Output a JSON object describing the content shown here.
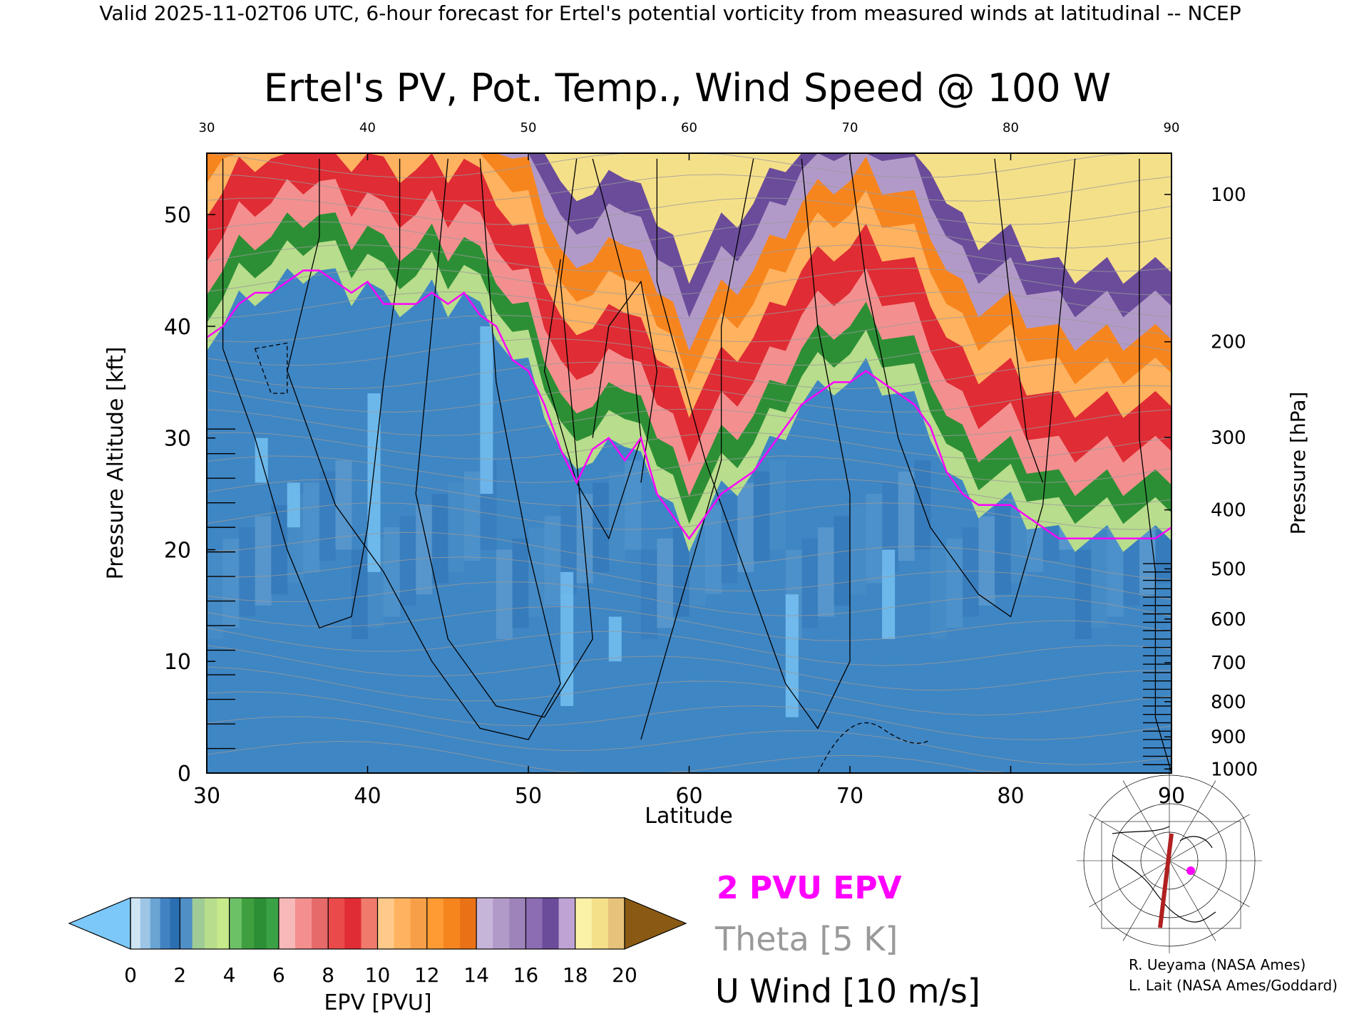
{
  "header": {
    "valid_line": "Valid 2025-11-02T06 UTC, 6-hour forecast for Ertel's potential vorticity from measured winds at latitudinal -- NCEP"
  },
  "chart_data": {
    "type": "heatmap",
    "title": "Ertel's PV, Pot. Temp., Wind Speed @ 100 W",
    "xlabel": "Latitude",
    "ylabel_left": "Pressure Altitude [kft]",
    "ylabel_right": "Pressure [hPa]",
    "xlim": [
      30,
      90
    ],
    "ylim_kft": [
      0,
      55.5
    ],
    "x_ticks": [
      "30",
      "40",
      "50",
      "60",
      "70",
      "80",
      "90"
    ],
    "y_ticks_kft": [
      "0",
      "10",
      "20",
      "30",
      "40",
      "50"
    ],
    "y_tick_values_kft": [
      0,
      10,
      20,
      30,
      40,
      50
    ],
    "pressure_ticks_hpa": [
      "100",
      "200",
      "300",
      "400",
      "500",
      "600",
      "700",
      "800",
      "900",
      "1000"
    ],
    "pressure_tick_values_hpa": [
      100,
      200,
      300,
      400,
      500,
      600,
      700,
      800,
      900,
      1000
    ],
    "pressure_edge_hpa": [
      1000,
      925,
      850,
      700,
      600,
      500,
      400,
      300,
      250,
      200,
      150,
      100
    ],
    "tropopause_kft": {
      "lat": [
        30,
        31,
        32,
        33,
        34,
        35,
        36,
        37,
        38,
        39,
        40,
        41,
        42,
        43,
        44,
        45,
        46,
        47,
        48,
        49,
        50,
        51,
        52,
        53,
        54,
        55,
        56,
        57,
        58,
        59,
        60,
        61,
        62,
        63,
        64,
        65,
        66,
        67,
        68,
        69,
        70,
        71,
        72,
        73,
        74,
        75,
        76,
        77,
        78,
        79,
        80,
        81,
        82,
        83,
        84,
        85,
        86,
        87,
        88,
        89,
        90
      ],
      "height": [
        39,
        40,
        42,
        43,
        43,
        44,
        45,
        45,
        44,
        43,
        44,
        42,
        42,
        42,
        43,
        42,
        43,
        41,
        40,
        37,
        36,
        33,
        29,
        26,
        29,
        30,
        28,
        30,
        25,
        23,
        21,
        23,
        25,
        26,
        27,
        29,
        31,
        33,
        34,
        35,
        35,
        36,
        35,
        34,
        33,
        31,
        27,
        25,
        24,
        24,
        24,
        23,
        22,
        21,
        21,
        21,
        21,
        21,
        21,
        21,
        22
      ]
    },
    "u_wind_10ms_contours": [
      "0",
      "10",
      "20",
      "30",
      "40",
      "50",
      "-10"
    ],
    "theta_contours_k": [
      "290",
      "300",
      "310",
      "320",
      "330",
      "340",
      "350",
      "360",
      "370",
      "380"
    ],
    "colorbar": {
      "label": "EPV [PVU]",
      "ticks": [
        "0",
        "2",
        "4",
        "6",
        "8",
        "10",
        "12",
        "14",
        "16",
        "18",
        "20"
      ],
      "bands": [
        [
          "#cfe5f4",
          "#9cc5e6",
          "#6aa4d3",
          "#4183c2",
          "#2b6fb3"
        ],
        [
          "#4f8fc6",
          "#9fcb96",
          "#b8dd8c",
          "#c6ea8a"
        ],
        [
          "#6cc066",
          "#3f9f3e",
          "#2d8f35",
          "#3aa245"
        ],
        [
          "#f6b8b8",
          "#f48f8f",
          "#e76a6a"
        ],
        [
          "#ea4a4a",
          "#e02c34",
          "#f07a6b"
        ],
        [
          "#ffc98a",
          "#ffb25f",
          "#f79f48"
        ],
        [
          "#ff9b32",
          "#f7851e",
          "#ea7216"
        ],
        [
          "#c7b4d9",
          "#b29ac8",
          "#9e83bb"
        ],
        [
          "#8c6cb3",
          "#6b4c9a",
          "#bfa3d4"
        ],
        [
          "#fbf1a7",
          "#f5e08a",
          "#e6c27a"
        ]
      ],
      "under_color": "#7cc8f8",
      "over_color": "#8a5a14"
    },
    "legend": {
      "pv2": "2 PVU EPV",
      "theta": "Theta [5 K]",
      "uwind": "U Wind [10 m/s]",
      "pv2_color": "#ff00ff",
      "theta_color": "#9a9a9a",
      "uwind_color": "#000000"
    },
    "inset_map": {
      "cross_section_color": "#b02020",
      "marker_color": "#ff00ff"
    },
    "credits": [
      "R. Ueyama (NASA Ames)",
      "L. Lait (NASA Ames/Goddard)"
    ]
  }
}
